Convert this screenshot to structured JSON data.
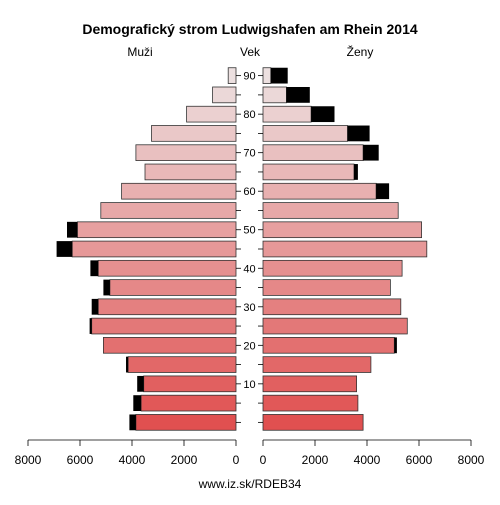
{
  "chart_data": {
    "type": "bar",
    "title": "Demografický strom Ludwigshafen am Rhein 2014",
    "left_label": "Muži",
    "center_label": "Vek",
    "right_label": "Ženy",
    "footer": "www.iz.sk/RDEB34",
    "age_ticks": [
      "10",
      "20",
      "30",
      "40",
      "50",
      "60",
      "70",
      "80",
      "90"
    ],
    "x_ticks_left": [
      "8000",
      "6000",
      "4000",
      "2000",
      "0"
    ],
    "x_ticks_right": [
      "0",
      "2000",
      "4000",
      "6000",
      "8000"
    ],
    "xlim": [
      0,
      8000
    ],
    "age_groups": [
      "0-4",
      "5-9",
      "10-14",
      "15-19",
      "20-24",
      "25-29",
      "30-34",
      "35-39",
      "40-44",
      "45-49",
      "50-54",
      "55-59",
      "60-64",
      "65-69",
      "70-74",
      "75-79",
      "80-84",
      "85-89",
      "90+"
    ],
    "series": [
      {
        "name": "Muži",
        "values": [
          3850,
          3650,
          3550,
          4150,
          5100,
          5550,
          5300,
          4850,
          5300,
          6300,
          6100,
          5200,
          4400,
          3500,
          3850,
          3250,
          1900,
          900,
          300
        ],
        "excess": [
          250,
          300,
          250,
          80,
          0,
          80,
          250,
          250,
          300,
          600,
          400,
          0,
          0,
          0,
          0,
          0,
          0,
          0,
          0
        ]
      },
      {
        "name": "Ženy",
        "values": [
          3850,
          3650,
          3600,
          4150,
          5050,
          5550,
          5300,
          4900,
          5350,
          6300,
          6100,
          5200,
          4350,
          3500,
          3850,
          3250,
          1850,
          900,
          300
        ],
        "excess": [
          0,
          0,
          0,
          0,
          100,
          0,
          0,
          0,
          0,
          0,
          0,
          0,
          500,
          150,
          600,
          850,
          900,
          900,
          650
        ]
      }
    ],
    "colors": {
      "gradient_young": "#e05050",
      "gradient_old": "#ece0e0",
      "excess": "#000000",
      "bar_stroke": "#333333"
    }
  }
}
